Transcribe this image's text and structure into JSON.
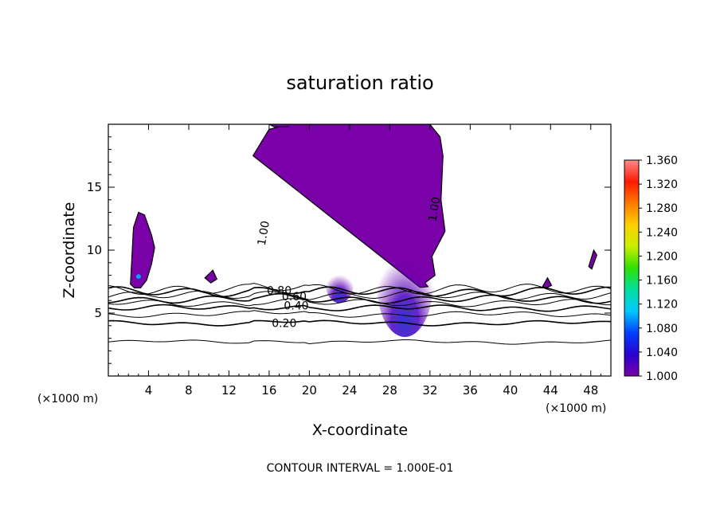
{
  "chart_data": {
    "type": "contour",
    "title": "saturation ratio",
    "xlabel": "X-coordinate",
    "ylabel": "Z-coordinate",
    "x_unit_left": "(×1000 m)",
    "x_unit_right": "(×1000 m)",
    "xlim": [
      0,
      50
    ],
    "ylim": [
      0,
      20
    ],
    "x_ticks": [
      "4",
      "8",
      "12",
      "16",
      "20",
      "24",
      "28",
      "32",
      "36",
      "40",
      "44",
      "48"
    ],
    "y_ticks": [
      "5",
      "10",
      "15"
    ],
    "footer": "CONTOUR INTERVAL = 1.000E-01",
    "contour_labels": [
      "0.20",
      "0.40",
      "0.60",
      "0.80",
      "1.00",
      "1.00"
    ],
    "colorbar": {
      "min": 1.0,
      "max": 1.36,
      "labels": [
        "1.360",
        "1.320",
        "1.280",
        "1.240",
        "1.200",
        "1.160",
        "1.120",
        "1.080",
        "1.040",
        "1.000"
      ],
      "colors": [
        "#7a00a8",
        "#2a00d0",
        "#0040ff",
        "#00c8ff",
        "#00e0a0",
        "#30e000",
        "#c8f000",
        "#ffd000",
        "#ff7a00",
        "#ff1a00",
        "#ff8a8a"
      ]
    },
    "contour_levels": [
      {
        "level": 0.1,
        "z": 2.7
      },
      {
        "level": 0.2,
        "z": 4.2
      },
      {
        "level": 0.3,
        "z": 4.9
      },
      {
        "level": 0.4,
        "z": 5.4
      },
      {
        "level": 0.5,
        "z": 5.8
      },
      {
        "level": 0.6,
        "z": 6.1
      },
      {
        "level": 0.7,
        "z": 6.4
      },
      {
        "level": 0.8,
        "z": 6.7
      },
      {
        "level": 0.9,
        "z": 6.9
      }
    ],
    "supersaturated_regions": [
      {
        "region": "main",
        "x": [
          14.4,
          16,
          17,
          18,
          16.5,
          16,
          19,
          20,
          21,
          22,
          24,
          26,
          28,
          30,
          32,
          33,
          33.3,
          33.1,
          33.5,
          32.2,
          32.5,
          31.5,
          31.8,
          31.2,
          31
        ],
        "z": [
          17.5,
          19.6,
          19.8,
          19.8,
          19.8,
          20,
          20,
          20,
          20,
          20,
          20,
          20,
          20,
          20,
          20,
          19,
          17.5,
          14,
          11.5,
          9.5,
          8,
          7.4,
          7.1,
          7.05,
          7.05
        ]
      },
      {
        "region": "left-cloud",
        "x": [
          2.2,
          2.5,
          3.0,
          3.6,
          4.3,
          4.6,
          4.3,
          3.8,
          3.2,
          2.6,
          2.2
        ],
        "z": [
          7.3,
          11.8,
          13.0,
          12.8,
          11.2,
          10.2,
          8.9,
          7.6,
          7.0,
          7.0,
          7.3
        ]
      },
      {
        "region": "small-a",
        "x": [
          9.6,
          10.4,
          10.8,
          10.2,
          9.6
        ],
        "z": [
          7.8,
          8.4,
          7.7,
          7.4,
          7.8
        ]
      },
      {
        "region": "small-b",
        "x": [
          43.2,
          43.7,
          44.1,
          43.6,
          43.2
        ],
        "z": [
          7.1,
          7.8,
          7.2,
          7.0,
          7.1
        ]
      },
      {
        "region": "small-c",
        "x": [
          47.8,
          48.3,
          48.6,
          48.1,
          47.8
        ],
        "z": [
          8.7,
          10.0,
          9.6,
          8.5,
          8.7
        ]
      }
    ]
  }
}
